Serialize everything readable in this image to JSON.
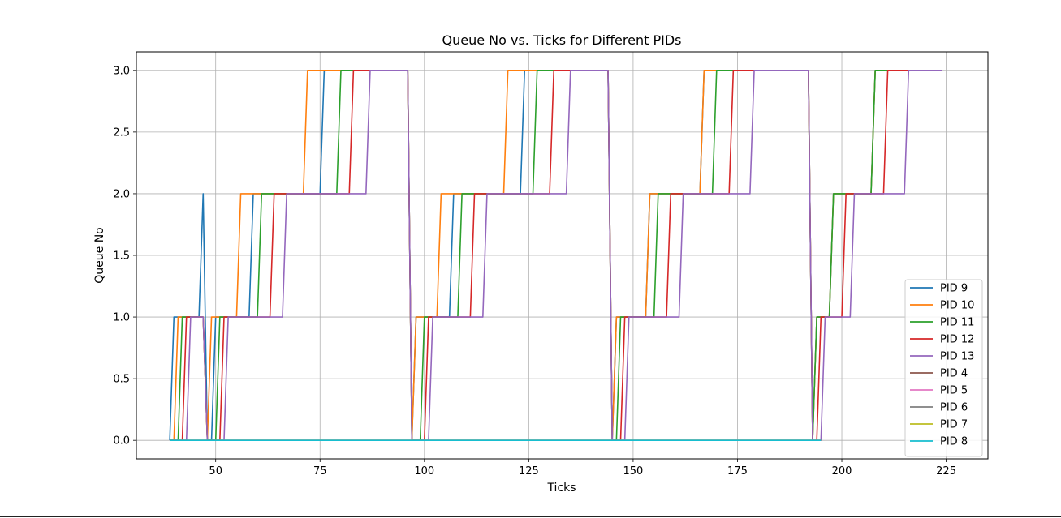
{
  "chart_data": {
    "type": "line",
    "title": "Queue No vs. Ticks for Different PIDs",
    "xlabel": "Ticks",
    "ylabel": "Queue No",
    "xlim": [
      31,
      235
    ],
    "ylim": [
      -0.15,
      3.15
    ],
    "xticks": [
      50,
      75,
      100,
      125,
      150,
      175,
      200,
      225
    ],
    "yticks": [
      0.0,
      0.5,
      1.0,
      1.5,
      2.0,
      2.5,
      3.0
    ],
    "xtick_labels": [
      "50",
      "75",
      "100",
      "125",
      "150",
      "175",
      "200",
      "225"
    ],
    "ytick_labels": [
      "0.0",
      "0.5",
      "1.0",
      "1.5",
      "2.0",
      "2.5",
      "3.0"
    ],
    "grid": true,
    "legend_position": "bottom-right",
    "series": [
      {
        "name": "PID 9",
        "color": "#1f77b4",
        "points": [
          [
            39,
            0
          ],
          [
            40,
            1
          ],
          [
            46,
            1
          ],
          [
            47,
            2
          ],
          [
            48,
            0
          ],
          [
            49,
            0
          ],
          [
            50,
            1
          ],
          [
            58,
            1
          ],
          [
            59,
            2
          ],
          [
            75,
            2
          ],
          [
            76,
            3
          ],
          [
            96,
            3
          ],
          [
            97,
            0
          ],
          [
            98,
            1
          ],
          [
            106,
            1
          ],
          [
            107,
            2
          ],
          [
            123,
            2
          ],
          [
            124,
            3
          ],
          [
            144,
            3
          ],
          [
            145,
            0
          ],
          [
            146,
            1
          ],
          [
            153,
            1
          ],
          [
            154,
            2
          ],
          [
            166,
            2
          ],
          [
            167,
            3
          ],
          [
            192,
            3
          ],
          [
            193,
            0
          ],
          [
            194,
            1
          ],
          [
            197,
            1
          ],
          [
            198,
            2
          ],
          [
            207,
            2
          ],
          [
            208,
            3
          ],
          [
            216,
            3
          ]
        ]
      },
      {
        "name": "PID 10",
        "color": "#ff7f0e",
        "points": [
          [
            39,
            0
          ],
          [
            40,
            0
          ],
          [
            41,
            1
          ],
          [
            47,
            1
          ],
          [
            48,
            0
          ],
          [
            49,
            1
          ],
          [
            55,
            1
          ],
          [
            56,
            2
          ],
          [
            71,
            2
          ],
          [
            72,
            3
          ],
          [
            96,
            3
          ],
          [
            97,
            0
          ],
          [
            98,
            1
          ],
          [
            103,
            1
          ],
          [
            104,
            2
          ],
          [
            119,
            2
          ],
          [
            120,
            3
          ],
          [
            144,
            3
          ],
          [
            145,
            0
          ],
          [
            146,
            1
          ],
          [
            153,
            1
          ],
          [
            154,
            2
          ],
          [
            166,
            2
          ],
          [
            167,
            3
          ],
          [
            192,
            3
          ],
          [
            193,
            0
          ],
          [
            194,
            1
          ],
          [
            197,
            1
          ],
          [
            198,
            2
          ],
          [
            207,
            2
          ],
          [
            208,
            3
          ],
          [
            216,
            3
          ]
        ]
      },
      {
        "name": "PID 11",
        "color": "#2ca02c",
        "points": [
          [
            39,
            0
          ],
          [
            41,
            0
          ],
          [
            42,
            1
          ],
          [
            47,
            1
          ],
          [
            48,
            0
          ],
          [
            50,
            0
          ],
          [
            51,
            1
          ],
          [
            60,
            1
          ],
          [
            61,
            2
          ],
          [
            79,
            2
          ],
          [
            80,
            3
          ],
          [
            96,
            3
          ],
          [
            97,
            0
          ],
          [
            99,
            0
          ],
          [
            100,
            1
          ],
          [
            108,
            1
          ],
          [
            109,
            2
          ],
          [
            126,
            2
          ],
          [
            127,
            3
          ],
          [
            144,
            3
          ],
          [
            145,
            0
          ],
          [
            146,
            0
          ],
          [
            147,
            1
          ],
          [
            155,
            1
          ],
          [
            156,
            2
          ],
          [
            169,
            2
          ],
          [
            170,
            3
          ],
          [
            192,
            3
          ],
          [
            193,
            0
          ],
          [
            194,
            1
          ],
          [
            197,
            1
          ],
          [
            198,
            2
          ],
          [
            207,
            2
          ],
          [
            208,
            3
          ],
          [
            216,
            3
          ]
        ]
      },
      {
        "name": "PID 12",
        "color": "#d62728",
        "points": [
          [
            39,
            0
          ],
          [
            42,
            0
          ],
          [
            43,
            1
          ],
          [
            47,
            1
          ],
          [
            48,
            0
          ],
          [
            51,
            0
          ],
          [
            52,
            1
          ],
          [
            63,
            1
          ],
          [
            64,
            2
          ],
          [
            82,
            2
          ],
          [
            83,
            3
          ],
          [
            96,
            3
          ],
          [
            97,
            0
          ],
          [
            100,
            0
          ],
          [
            101,
            1
          ],
          [
            111,
            1
          ],
          [
            112,
            2
          ],
          [
            130,
            2
          ],
          [
            131,
            3
          ],
          [
            144,
            3
          ],
          [
            145,
            0
          ],
          [
            147,
            0
          ],
          [
            148,
            1
          ],
          [
            158,
            1
          ],
          [
            159,
            2
          ],
          [
            173,
            2
          ],
          [
            174,
            3
          ],
          [
            192,
            3
          ],
          [
            193,
            0
          ],
          [
            194,
            0
          ],
          [
            195,
            1
          ],
          [
            200,
            1
          ],
          [
            201,
            2
          ],
          [
            210,
            2
          ],
          [
            211,
            3
          ],
          [
            216,
            3
          ]
        ]
      },
      {
        "name": "PID 13",
        "color": "#9467bd",
        "points": [
          [
            39,
            0
          ],
          [
            43,
            0
          ],
          [
            44,
            1
          ],
          [
            47,
            1
          ],
          [
            48,
            0
          ],
          [
            52,
            0
          ],
          [
            53,
            1
          ],
          [
            66,
            1
          ],
          [
            67,
            2
          ],
          [
            86,
            2
          ],
          [
            87,
            3
          ],
          [
            96,
            3
          ],
          [
            97,
            0
          ],
          [
            101,
            0
          ],
          [
            102,
            1
          ],
          [
            114,
            1
          ],
          [
            115,
            2
          ],
          [
            134,
            2
          ],
          [
            135,
            3
          ],
          [
            144,
            3
          ],
          [
            145,
            0
          ],
          [
            148,
            0
          ],
          [
            149,
            1
          ],
          [
            161,
            1
          ],
          [
            162,
            2
          ],
          [
            178,
            2
          ],
          [
            179,
            3
          ],
          [
            192,
            3
          ],
          [
            193,
            0
          ],
          [
            195,
            0
          ],
          [
            196,
            1
          ],
          [
            202,
            1
          ],
          [
            203,
            2
          ],
          [
            215,
            2
          ],
          [
            216,
            3
          ],
          [
            224,
            3
          ]
        ]
      },
      {
        "name": "PID 4",
        "color": "#8c564b",
        "points": [
          [
            39,
            0
          ],
          [
            195,
            0
          ]
        ]
      },
      {
        "name": "PID 5",
        "color": "#e377c2",
        "points": [
          [
            39,
            0
          ],
          [
            195,
            0
          ]
        ]
      },
      {
        "name": "PID 6",
        "color": "#7f7f7f",
        "points": [
          [
            39,
            0
          ],
          [
            195,
            0
          ]
        ]
      },
      {
        "name": "PID 7",
        "color": "#bcbd22",
        "points": [
          [
            39,
            0
          ],
          [
            195,
            0
          ]
        ]
      },
      {
        "name": "PID 8",
        "color": "#17becf",
        "points": [
          [
            39,
            0
          ],
          [
            195,
            0
          ]
        ]
      }
    ]
  }
}
